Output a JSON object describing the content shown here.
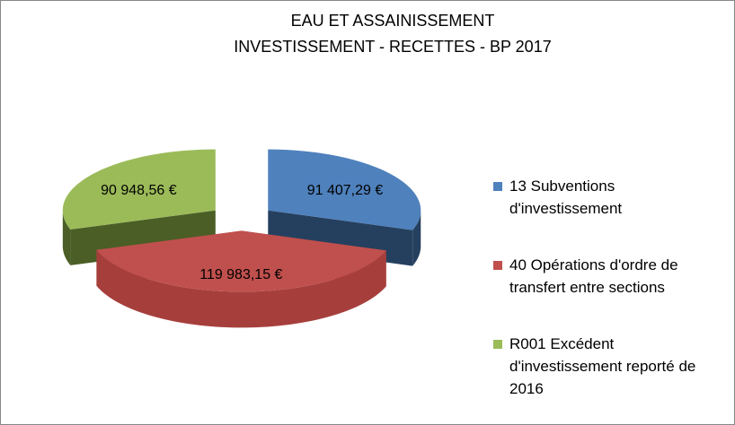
{
  "chart_data": {
    "type": "pie",
    "title": [
      "EAU ET ASSAINISSEMENT",
      "INVESTISSEMENT - RECETTES - BP 2017"
    ],
    "labels": [
      "13 Subventions d'investissement",
      "40 Opérations d'ordre de transfert entre sections",
      "R001 Excédent d'investissement reporté de 2016"
    ],
    "values": [
      91407.29,
      119983.15,
      90948.56
    ],
    "value_labels": [
      "91 407,29 €",
      "119 983,15 €",
      "90 948,56 €"
    ],
    "colors": [
      "#4f81bd",
      "#c0504d",
      "#9bbb59"
    ],
    "side_colors": [
      "#25405f",
      "#a63f3c",
      "#4a5e26"
    ],
    "legend": "right"
  }
}
